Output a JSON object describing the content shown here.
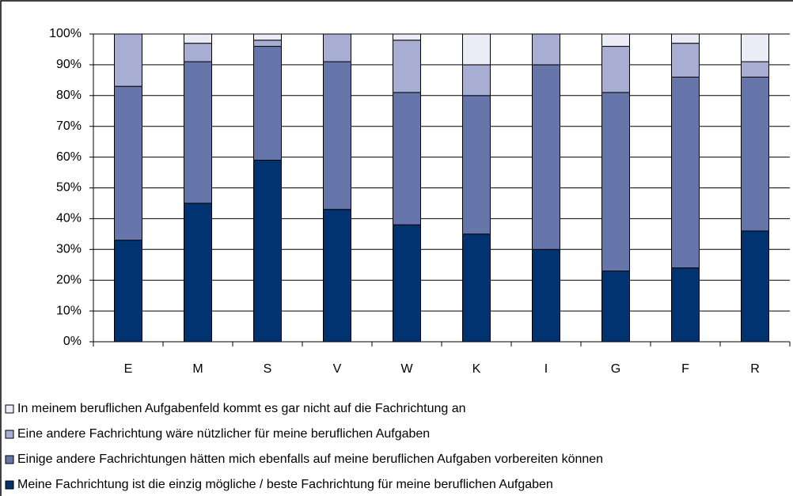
{
  "chart_data": {
    "type": "stacked_bar",
    "categories": [
      "E",
      "M",
      "S",
      "V",
      "W",
      "K",
      "I",
      "G",
      "F",
      "R"
    ],
    "series": [
      {
        "name": "Meine Fachrichtung ist die einzig mögliche / beste Fachrichtung für meine beruflichen Aufgaben",
        "color": "#00336f",
        "values": [
          33,
          45,
          59,
          43,
          38,
          35,
          30,
          23,
          24,
          36
        ]
      },
      {
        "name": "Einige andere Fachrichtungen hätten mich ebenfalls auf meine beruflichen Aufgaben vorbereiten können",
        "color": "#6676aa",
        "values": [
          50,
          46,
          37,
          48,
          43,
          45,
          60,
          58,
          62,
          50
        ]
      },
      {
        "name": "Eine andere Fachrichtung wäre nützlicher für meine beruflichen Aufgaben",
        "color": "#a8aed3",
        "values": [
          17,
          6,
          2,
          9,
          17,
          10,
          10,
          15,
          11,
          5
        ]
      },
      {
        "name": "In meinem beruflichen Aufgabenfeld kommt es gar nicht auf die Fachrichtung an",
        "color": "#ececf6",
        "values": [
          0,
          3,
          2,
          0,
          2,
          10,
          0,
          4,
          3,
          9
        ]
      }
    ],
    "ylim": [
      0,
      100
    ],
    "yticks": [
      {
        "value": 0,
        "label": "0%"
      },
      {
        "value": 10,
        "label": "10%"
      },
      {
        "value": 20,
        "label": "20%"
      },
      {
        "value": 30,
        "label": "30%"
      },
      {
        "value": 40,
        "label": "40%"
      },
      {
        "value": 50,
        "label": "50%"
      },
      {
        "value": 60,
        "label": "60%"
      },
      {
        "value": 70,
        "label": "70%"
      },
      {
        "value": 80,
        "label": "80%"
      },
      {
        "value": 90,
        "label": "90%"
      },
      {
        "value": 100,
        "label": "100%"
      }
    ],
    "grid": true,
    "legend": "bottom"
  }
}
